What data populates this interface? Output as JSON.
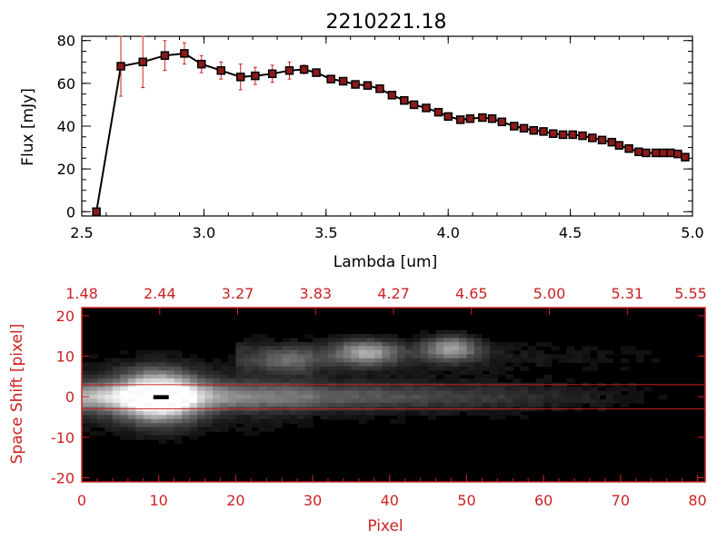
{
  "figure": {
    "title": "2210221.18"
  },
  "colors": {
    "axis": "#000000",
    "accent": "#cc2222",
    "image_bg": "#000000"
  },
  "chart_data": [
    {
      "type": "line",
      "title": "2210221.18",
      "xlabel": "Lambda [um]",
      "ylabel": "Flux [mJy]",
      "xlim": [
        2.5,
        5.0
      ],
      "ylim": [
        -2,
        82
      ],
      "xticks": [
        "2.5",
        "3.0",
        "3.5",
        "4.0",
        "4.5",
        "5.0"
      ],
      "xtick_values": [
        2.5,
        3.0,
        3.5,
        4.0,
        4.5,
        5.0
      ],
      "yticks": [
        "0",
        "20",
        "40",
        "60",
        "80"
      ],
      "ytick_values": [
        0,
        20,
        40,
        60,
        80
      ],
      "grid": false,
      "series": [
        {
          "x": [
            2.56,
            2.66,
            2.75,
            2.84,
            2.92,
            2.99,
            3.07,
            3.15,
            3.21,
            3.28,
            3.35,
            3.41,
            3.46,
            3.52,
            3.57,
            3.62,
            3.67,
            3.72,
            3.77,
            3.82,
            3.86,
            3.91,
            3.96,
            4.0,
            4.05,
            4.09,
            4.14,
            4.18,
            4.22,
            4.27,
            4.31,
            4.35,
            4.39,
            4.43,
            4.47,
            4.51,
            4.55,
            4.59,
            4.63,
            4.67,
            4.7,
            4.74,
            4.78,
            4.81,
            4.85,
            4.88,
            4.91,
            4.94,
            4.97
          ],
          "y": [
            0,
            68,
            70,
            73,
            74,
            69,
            66,
            63,
            63.5,
            64.5,
            66,
            66.5,
            65,
            62,
            61,
            59.5,
            59,
            57.5,
            54.5,
            52,
            50,
            48.5,
            46.5,
            44.5,
            43,
            43.5,
            44,
            43.5,
            42,
            40,
            39,
            38,
            37.5,
            36.5,
            36,
            36,
            35.5,
            34.5,
            33.5,
            32.5,
            31,
            29.5,
            28,
            27.5,
            27.5,
            27.5,
            27.5,
            27,
            25.5
          ],
          "yerr": [
            0,
            14,
            12,
            7,
            5,
            4,
            4,
            6,
            4,
            4,
            4,
            2,
            1.5,
            1.2,
            1,
            1,
            1,
            1,
            1,
            1,
            1,
            1,
            1,
            1,
            1,
            1,
            1,
            1,
            1,
            1,
            1,
            1,
            1,
            1,
            1,
            1,
            1,
            1,
            1,
            1,
            1,
            1,
            1,
            1,
            1,
            1,
            1,
            1,
            1
          ]
        }
      ]
    },
    {
      "type": "heatmap",
      "xlabel": "Pixel",
      "ylabel": "Space Shift [pixel]",
      "xlim": [
        0,
        81
      ],
      "ylim": [
        -21,
        22
      ],
      "xticks": [
        "0",
        "10",
        "20",
        "30",
        "40",
        "50",
        "60",
        "70",
        "80"
      ],
      "xtick_values": [
        0,
        10,
        20,
        30,
        40,
        50,
        60,
        70,
        80
      ],
      "yticks": [
        "-20",
        "-10",
        "0",
        "10",
        "20"
      ],
      "ytick_values": [
        -20,
        -10,
        0,
        10,
        20
      ],
      "top_axis_ticks": [
        "1.48",
        "2.44",
        "3.27",
        "3.83",
        "4.27",
        "4.65",
        "5.00",
        "5.31",
        "5.55"
      ],
      "reference_lines_y": [
        3,
        -3
      ],
      "features": [
        {
          "x": 10,
          "y": 0,
          "brightness": 1.0,
          "sx": 5,
          "sy": 6
        },
        {
          "x": 37,
          "y": 11,
          "brightness": 0.55,
          "sx": 4,
          "sy": 3
        },
        {
          "x": 48,
          "y": 12,
          "brightness": 0.55,
          "sx": 3.5,
          "sy": 3
        },
        {
          "x": 27,
          "y": 9,
          "brightness": 0.25,
          "sx": 4,
          "sy": 3
        }
      ]
    }
  ]
}
